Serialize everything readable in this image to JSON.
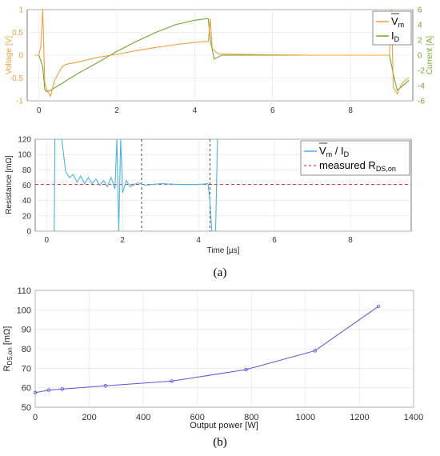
{
  "figure": {
    "label_a": "(a)",
    "label_b": "(b)"
  },
  "chart_data": [
    {
      "type": "line",
      "panel": "a-top",
      "ylabel": "Voltage [V]",
      "ylabel_right": "Current [A]",
      "xlim": [
        -0.3,
        9.6
      ],
      "ylim": [
        -1,
        1
      ],
      "ylim_right": [
        -6,
        6
      ],
      "xticks": [
        "0",
        "2",
        "4",
        "6",
        "8"
      ],
      "yticks": [
        "-1",
        "-0.5",
        "0",
        "0.5",
        "1"
      ],
      "yticks_right": [
        "-6",
        "-4",
        "-2",
        "0",
        "2",
        "4",
        "6"
      ],
      "grid": true,
      "legend": "top-right",
      "colors": {
        "voltage": "#f0a040",
        "current": "#6fa830"
      },
      "series": [
        {
          "name_main": "V",
          "name_sub": "m",
          "axis": "left",
          "x": [
            -0.1,
            0.0,
            0.05,
            0.1,
            0.15,
            0.2,
            0.3,
            0.4,
            0.5,
            0.6,
            0.7,
            1.0,
            1.5,
            2.0,
            2.5,
            3.0,
            3.5,
            4.0,
            4.25,
            4.35,
            4.4,
            4.45,
            4.6,
            5.0,
            6.0,
            7.0,
            8.0,
            8.5,
            9.0,
            9.05,
            9.1,
            9.2,
            9.3,
            9.4,
            9.5
          ],
          "y": [
            0.0,
            0.0,
            0.2,
            1.0,
            -0.6,
            -0.75,
            -0.9,
            -0.55,
            -0.4,
            -0.25,
            -0.2,
            -0.15,
            -0.05,
            0.02,
            0.1,
            0.17,
            0.23,
            0.28,
            0.3,
            0.3,
            0.8,
            0.15,
            0.03,
            0.02,
            0.01,
            0.0,
            0.0,
            0.0,
            0.0,
            1.0,
            -0.7,
            -0.85,
            -0.65,
            -0.55,
            -0.5
          ]
        },
        {
          "name_main": "I",
          "name_sub": "D",
          "axis": "right",
          "x": [
            -0.1,
            0.0,
            0.1,
            0.15,
            0.2,
            0.3,
            0.5,
            1.0,
            1.5,
            2.0,
            2.5,
            3.0,
            3.5,
            4.0,
            4.3,
            4.35,
            4.4,
            4.5,
            4.7,
            5.0,
            6.0,
            7.0,
            8.0,
            8.5,
            9.0,
            9.1,
            9.2,
            9.3,
            9.5
          ],
          "y": [
            0.0,
            0.0,
            -1.5,
            -4.5,
            -4.8,
            -4.6,
            -4.0,
            -2.4,
            -1.0,
            0.5,
            1.8,
            3.0,
            4.0,
            4.6,
            4.8,
            4.8,
            2.0,
            -0.5,
            0.0,
            0.0,
            0.0,
            0.0,
            0.0,
            0.0,
            0.0,
            -2.5,
            -4.6,
            -4.2,
            -3.3
          ]
        }
      ]
    },
    {
      "type": "line",
      "panel": "a-bottom",
      "xlabel": "Time [µs]",
      "ylabel": "Resistance [mΩ]",
      "xlim": [
        -0.3,
        9.6
      ],
      "ylim": [
        0,
        120
      ],
      "xticks": [
        "0",
        "2",
        "4",
        "6",
        "8"
      ],
      "yticks": [
        "0",
        "20",
        "40",
        "60",
        "80",
        "100",
        "120"
      ],
      "grid": true,
      "legend": "top-right",
      "colors": {
        "ratio": "#4fb3e0",
        "measured": "#e04040"
      },
      "vlines_x": [
        2.5,
        4.3
      ],
      "series": [
        {
          "name_main": "V",
          "name_sub": "m",
          "name_tail": " / I",
          "name_tail_sub": "D",
          "x": [
            0.2,
            0.22,
            0.3,
            0.4,
            0.5,
            0.6,
            0.7,
            0.8,
            0.9,
            1.0,
            1.1,
            1.2,
            1.3,
            1.4,
            1.5,
            1.6,
            1.7,
            1.8,
            1.85,
            1.9,
            1.95,
            2.0,
            2.1,
            2.2,
            2.4,
            2.6,
            3.0,
            3.5,
            4.0,
            4.25,
            4.3,
            4.35,
            4.45,
            4.5
          ],
          "y": [
            0,
            120,
            120,
            120,
            78,
            70,
            74,
            64,
            72,
            62,
            70,
            62,
            68,
            60,
            66,
            58,
            70,
            55,
            120,
            0,
            120,
            50,
            66,
            58,
            63,
            60,
            62,
            61,
            61,
            62,
            40,
            0,
            0,
            120
          ]
        },
        {
          "name_main": "measured R",
          "name_sub": "DS,on",
          "style": "dashed",
          "y_const": 61
        }
      ]
    },
    {
      "type": "line",
      "panel": "b",
      "xlabel": "Output power [W]",
      "ylabel_main": "R",
      "ylabel_sub": "DS,on",
      "ylabel_tail": " [mΩ]",
      "xlim": [
        0,
        1400
      ],
      "ylim": [
        50,
        110
      ],
      "xticks": [
        "0",
        "200",
        "400",
        "600",
        "800",
        "1000",
        "1200",
        "1400"
      ],
      "yticks": [
        "50",
        "60",
        "70",
        "80",
        "90",
        "100",
        "110"
      ],
      "grid": true,
      "colors": {
        "line": "#5555dd"
      },
      "x": [
        0,
        50,
        100,
        260,
        505,
        780,
        1035,
        1270
      ],
      "y": [
        57.5,
        58.8,
        59.3,
        61.0,
        63.4,
        69.3,
        79.0,
        101.8
      ]
    }
  ]
}
